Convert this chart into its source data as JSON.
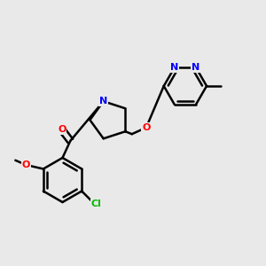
{
  "bg_color": "#e9e9e9",
  "bond_color": "#000000",
  "bond_width": 1.8,
  "atom_colors": {
    "N": "#0000ff",
    "O": "#ff0000",
    "Cl": "#00bb00",
    "C": "#000000"
  },
  "font_size": 8.0,
  "fig_size": [
    3.0,
    3.0
  ],
  "dpi": 100
}
